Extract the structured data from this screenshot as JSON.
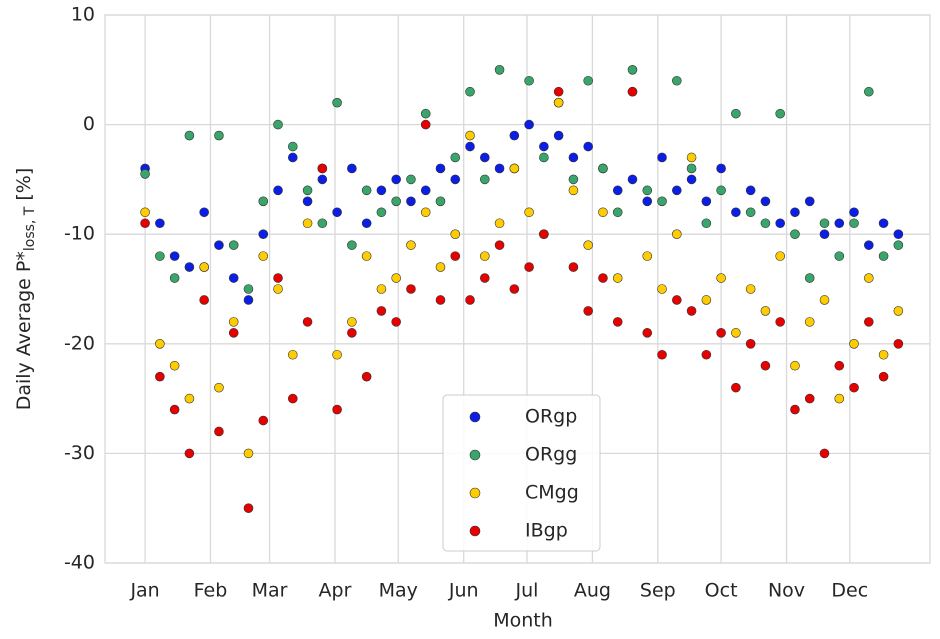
{
  "chart_data": {
    "type": "scatter",
    "xlabel": "Month",
    "ylabel": "Daily Average P*",
    "ylabel_sub": "loss, T",
    "ylabel_suffix": " [%]",
    "x": [
      1,
      8,
      15,
      22,
      29,
      36,
      43,
      50,
      57,
      64,
      71,
      78,
      85,
      92,
      99,
      106,
      113,
      120,
      127,
      134,
      141,
      148,
      155,
      162,
      169,
      176,
      183,
      190,
      197,
      204,
      211,
      218,
      225,
      232,
      239,
      246,
      253,
      260,
      267,
      274,
      281,
      288,
      295,
      302,
      309,
      316,
      323,
      330,
      337,
      344,
      351,
      358
    ],
    "xlim": [
      -18,
      373
    ],
    "xticks": [
      {
        "value": 1,
        "label": "Jan"
      },
      {
        "value": 32,
        "label": "Feb"
      },
      {
        "value": 60,
        "label": "Mar"
      },
      {
        "value": 91,
        "label": "Apr"
      },
      {
        "value": 121,
        "label": "May"
      },
      {
        "value": 152,
        "label": "Jun"
      },
      {
        "value": 182,
        "label": "Jul"
      },
      {
        "value": 213,
        "label": "Aug"
      },
      {
        "value": 244,
        "label": "Sep"
      },
      {
        "value": 274,
        "label": "Oct"
      },
      {
        "value": 305,
        "label": "Nov"
      },
      {
        "value": 335,
        "label": "Dec"
      }
    ],
    "ylim": [
      -40,
      10
    ],
    "yticks": [
      -40,
      -30,
      -20,
      -10,
      0,
      10
    ],
    "grid": true,
    "legend": "lower center",
    "series": [
      {
        "name": "ORgp",
        "color": "#0a1ee6",
        "values": [
          -4,
          -9,
          -12,
          -13,
          -8,
          -11,
          -14,
          -16,
          -10,
          -6,
          -3,
          -7,
          -5,
          -8,
          -4,
          -9,
          -6,
          -5,
          -7,
          -6,
          -4,
          -5,
          -2,
          -3,
          -4,
          -1,
          0,
          -2,
          -1,
          -3,
          -2,
          -4,
          -6,
          -5,
          -7,
          -3,
          -6,
          -5,
          -7,
          -4,
          -8,
          -6,
          -7,
          -9,
          -8,
          -7,
          -10,
          -9,
          -8,
          -11,
          -9,
          -10
        ]
      },
      {
        "name": "ORgg",
        "color": "#3aa56a",
        "values": [
          -4.5,
          -12,
          -14,
          -1,
          -13,
          -1,
          -11,
          -15,
          -7,
          0,
          -2,
          -6,
          -9,
          2,
          -11,
          -6,
          -8,
          -7,
          -5,
          1,
          -7,
          -3,
          3,
          -5,
          5,
          -4,
          4,
          -3,
          2,
          -5,
          4,
          -4,
          -8,
          5,
          -6,
          -7,
          4,
          -4,
          -9,
          -6,
          1,
          -8,
          -9,
          1,
          -10,
          -14,
          -9,
          -12,
          -9,
          3,
          -12,
          -11
        ]
      },
      {
        "name": "CMgg",
        "color": "#ffcc00",
        "values": [
          -8,
          -20,
          -22,
          -25,
          -13,
          -24,
          -18,
          -30,
          -12,
          -15,
          -21,
          -9,
          -4,
          -21,
          -18,
          -12,
          -15,
          -14,
          -11,
          -8,
          -13,
          -10,
          -1,
          -12,
          -9,
          -4,
          -8,
          -10,
          2,
          -6,
          -11,
          -8,
          -14,
          3,
          -12,
          -15,
          -10,
          -3,
          -16,
          -14,
          -19,
          -15,
          -17,
          -12,
          -22,
          -18,
          -16,
          -25,
          -20,
          -14,
          -21,
          -17
        ]
      },
      {
        "name": "IBgp",
        "color": "#e60000",
        "values": [
          -9,
          -23,
          -26,
          -30,
          -16,
          -28,
          -19,
          -35,
          -27,
          -14,
          -25,
          -18,
          -4,
          -26,
          -19,
          -23,
          -17,
          -18,
          -15,
          0,
          -16,
          -12,
          -16,
          -14,
          -11,
          -15,
          -13,
          -10,
          3,
          -13,
          -17,
          -14,
          -18,
          3,
          -19,
          -21,
          -16,
          -17,
          -21,
          -19,
          -24,
          -20,
          -22,
          -18,
          -26,
          -25,
          -30,
          -22,
          -24,
          -18,
          -23,
          -20
        ]
      }
    ]
  }
}
